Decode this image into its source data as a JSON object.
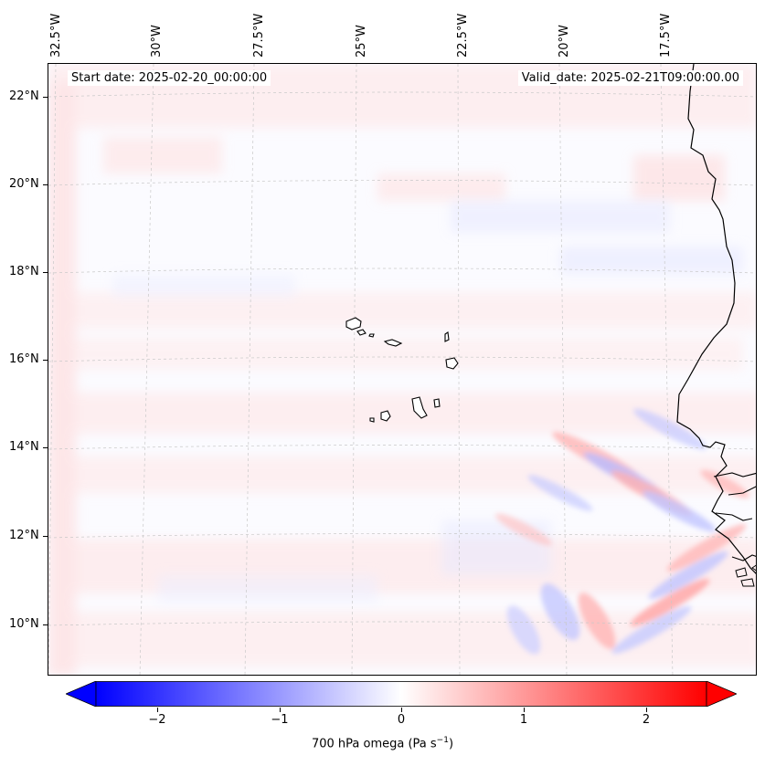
{
  "map": {
    "lon_labels": [
      "32.5°W",
      "30°W",
      "27.5°W",
      "25°W",
      "22.5°W",
      "20°W",
      "17.5°W"
    ],
    "lat_labels": [
      "22°N",
      "20°N",
      "18°N",
      "16°N",
      "14°N",
      "12°N",
      "10°N"
    ],
    "start_date": "Start date: 2025-02-20_00:00:00",
    "valid_date": "Valid_date: 2025-02-21T09:00:00.00",
    "field": "700 hPa omega",
    "colors": {
      "negative": "#0000ff",
      "neutral": "#ffffff",
      "positive": "#ff0000",
      "coast": "#000000",
      "gridline": "#c8c8c8"
    }
  },
  "colorbar": {
    "ticks": [
      "−2",
      "−1",
      "0",
      "1",
      "2"
    ],
    "tick_values": [
      -2,
      -1,
      0,
      1,
      2
    ],
    "range": [
      -2.6,
      2.6
    ],
    "label_main": "700 hPa omega (Pa s",
    "label_exp": "−1",
    "label_close": ")"
  }
}
